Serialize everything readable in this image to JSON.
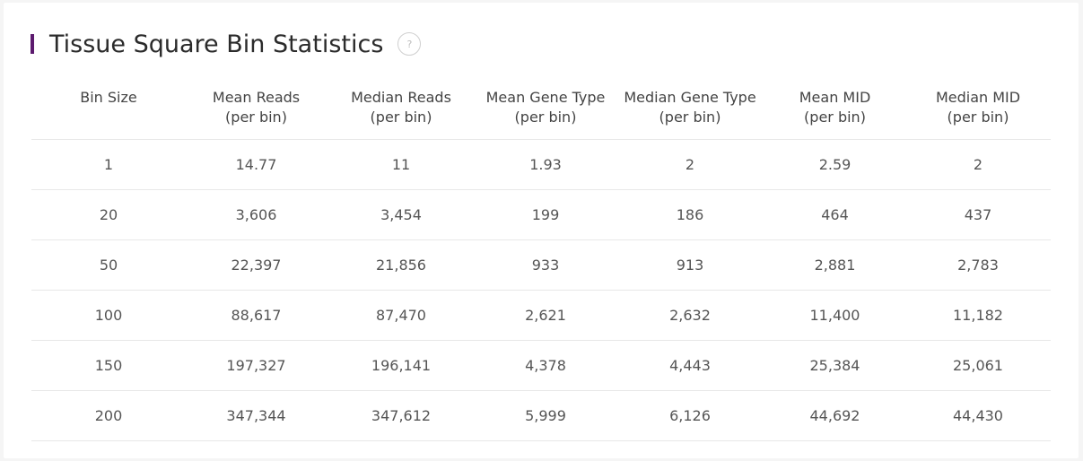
{
  "title": "Tissue Square Bin Statistics",
  "help_icon_glyph": "?",
  "colors": {
    "accent_bar": "#5c1a6e",
    "row_border": "#e8e8e8"
  },
  "table": {
    "headers": [
      {
        "line1": "Bin Size",
        "line2": ""
      },
      {
        "line1": "Mean Reads",
        "line2": "(per bin)"
      },
      {
        "line1": "Median Reads",
        "line2": "(per bin)"
      },
      {
        "line1": "Mean Gene Type",
        "line2": "(per bin)"
      },
      {
        "line1": "Median Gene Type",
        "line2": "(per bin)"
      },
      {
        "line1": "Mean MID",
        "line2": "(per bin)"
      },
      {
        "line1": "Median MID",
        "line2": "(per bin)"
      }
    ],
    "rows": [
      [
        "1",
        "14.77",
        "11",
        "1.93",
        "2",
        "2.59",
        "2"
      ],
      [
        "20",
        "3,606",
        "3,454",
        "199",
        "186",
        "464",
        "437"
      ],
      [
        "50",
        "22,397",
        "21,856",
        "933",
        "913",
        "2,881",
        "2,783"
      ],
      [
        "100",
        "88,617",
        "87,470",
        "2,621",
        "2,632",
        "11,400",
        "11,182"
      ],
      [
        "150",
        "197,327",
        "196,141",
        "4,378",
        "4,443",
        "25,384",
        "25,061"
      ],
      [
        "200",
        "347,344",
        "347,612",
        "5,999",
        "6,126",
        "44,692",
        "44,430"
      ]
    ]
  }
}
